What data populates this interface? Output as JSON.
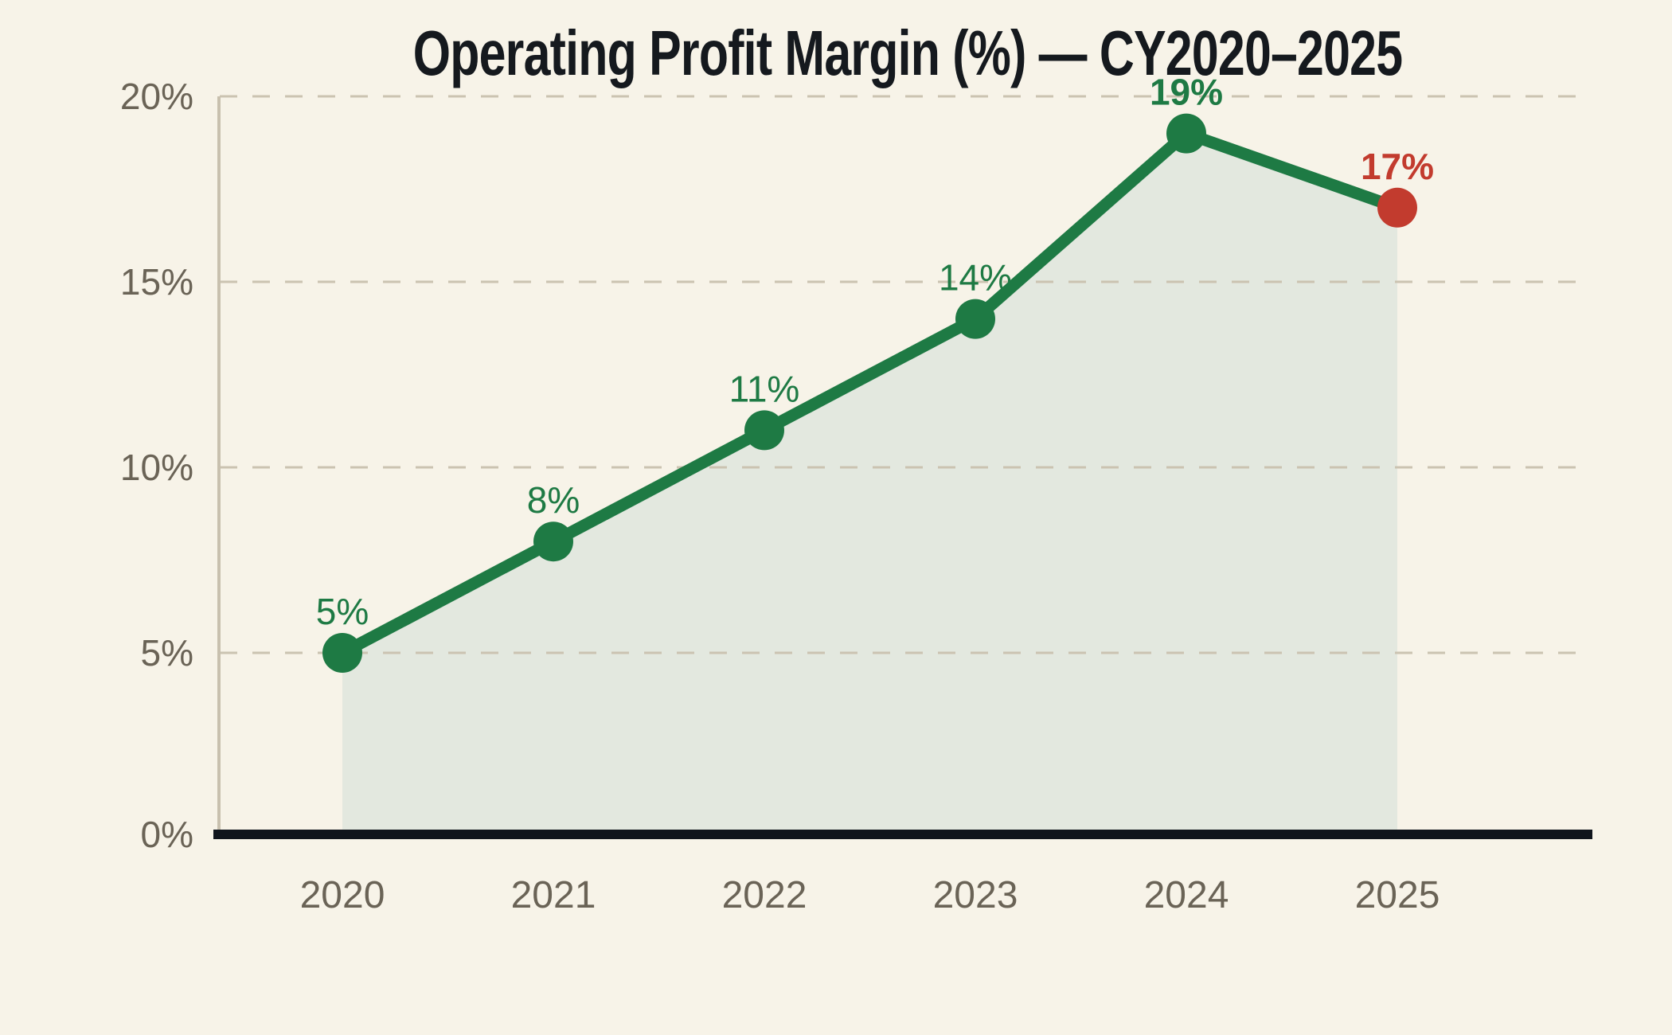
{
  "title": "Operating Profit Margin (%) — CY2020–2025",
  "chart_data": {
    "type": "line",
    "title": "Operating Profit Margin (%) — CY2020–2025",
    "categories": [
      "2020",
      "2021",
      "2022",
      "2023",
      "2024",
      "2025"
    ],
    "series": [
      {
        "name": "Operating Profit Margin",
        "values": [
          5,
          8,
          11,
          14,
          19,
          17
        ]
      }
    ],
    "point_labels": [
      "5%",
      "8%",
      "11%",
      "14%",
      "19%",
      "17%"
    ],
    "point_label_bold": [
      false,
      false,
      false,
      false,
      true,
      true
    ],
    "point_is_highlighted": [
      false,
      false,
      false,
      false,
      false,
      true
    ],
    "xlabel": "",
    "ylabel": "",
    "ylim": [
      0,
      20
    ],
    "yticks": [
      0,
      5,
      10,
      15,
      20
    ],
    "ytick_labels": [
      "0%",
      "5%",
      "10%",
      "15%",
      "20%"
    ],
    "grid": "horizontal-dashed",
    "legend": "none",
    "area_fill": true,
    "colors": {
      "background": "#f7f3e8",
      "title_text": "#15191e",
      "line": "#1e7a44",
      "marker": "#1e7a44",
      "highlight_marker": "#c23b2e",
      "point_label": "#1e7a44",
      "highlight_point_label": "#c23b2e",
      "area_fill": "#e3e8df",
      "gridline": "#cbc3b1",
      "axis_line": "#c8c0ae",
      "tick_text": "#6a6356",
      "baseline": "#10151c"
    }
  }
}
